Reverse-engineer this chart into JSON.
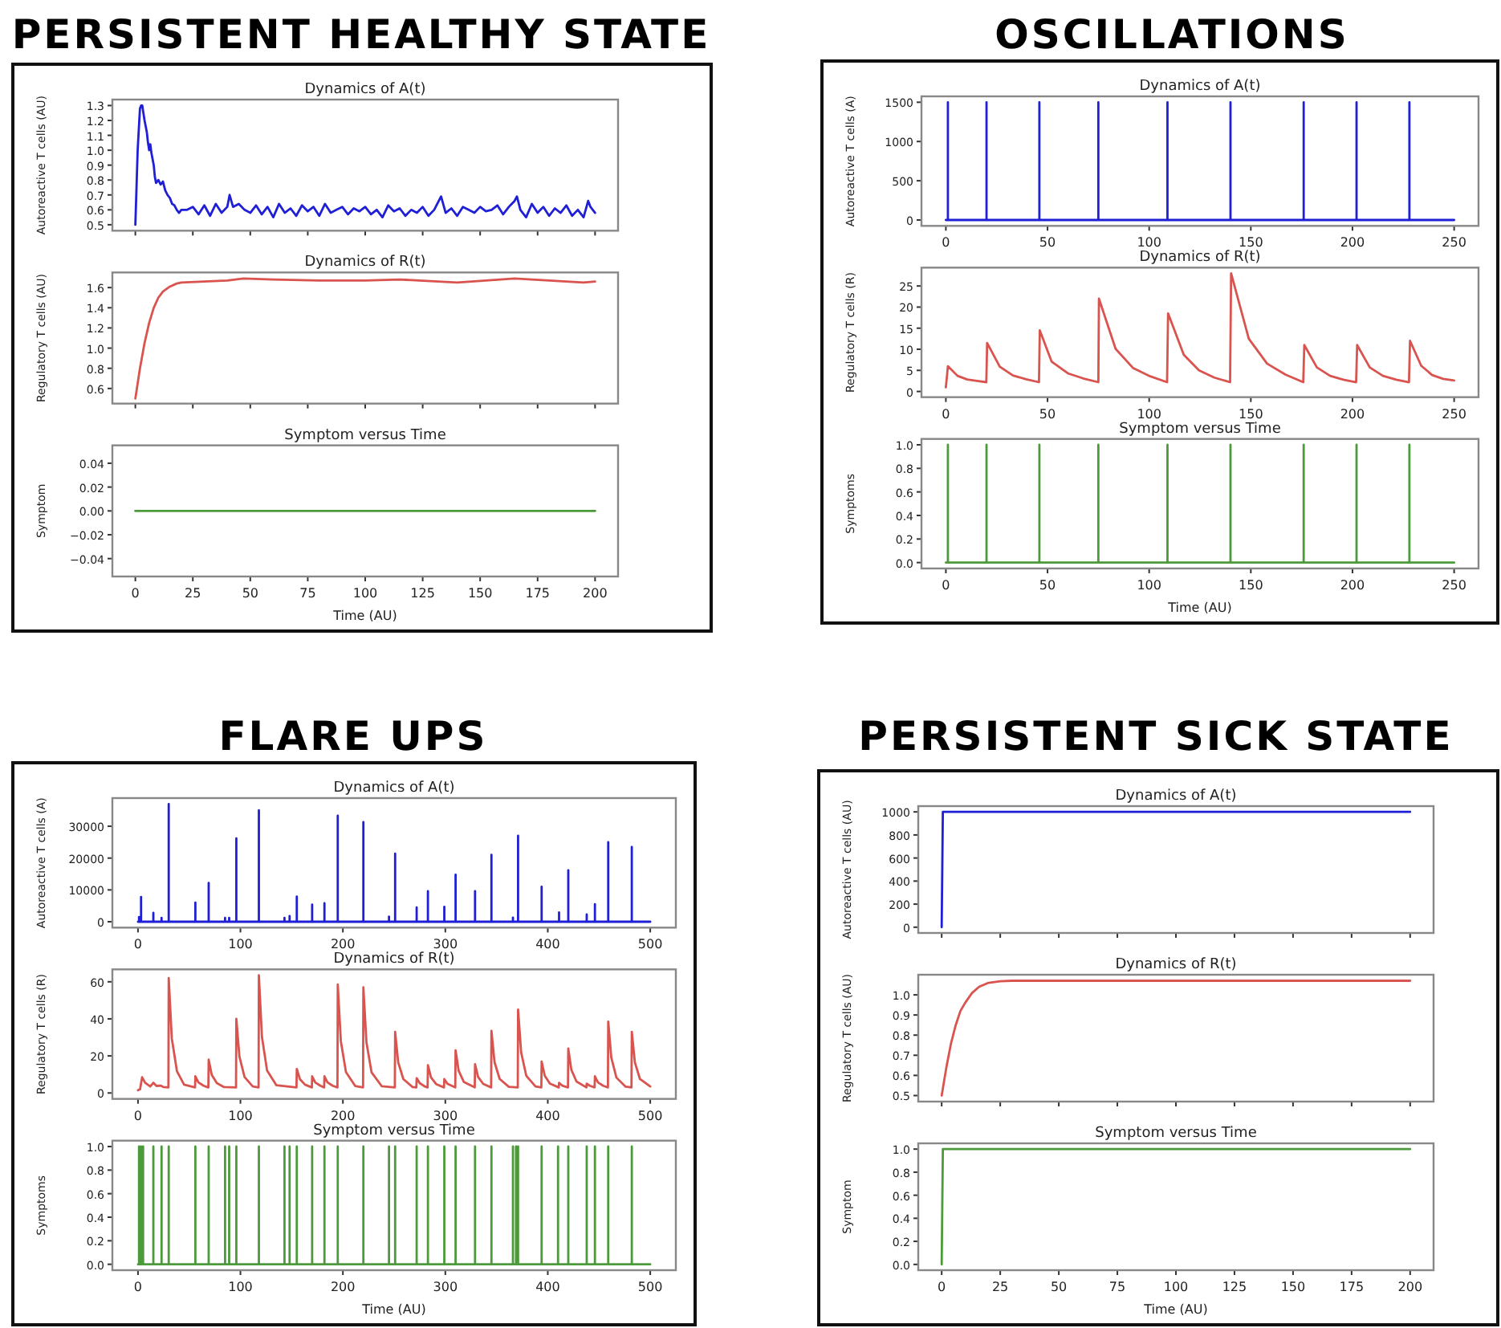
{
  "chart_data": [
    {
      "type": "line",
      "title": "PERSISTENT HEALTHY STATE",
      "subtitle": "Dynamics of A(t)",
      "ylabel": "Autoreactive T cells (AU)",
      "color": "#1f1fd6",
      "xlim": [
        -10,
        210
      ],
      "xticks": [
        0,
        25,
        50,
        75,
        100,
        125,
        150,
        175,
        200
      ],
      "ylim": [
        0.46,
        1.34
      ],
      "yticks": [
        0.5,
        0.6,
        0.7,
        0.8,
        0.9,
        {
          "value": 1,
          "label": "1.0"
        },
        1.1,
        1.2,
        1.3
      ],
      "tick_labels": "y",
      "x": [
        0,
        1,
        2,
        2.5,
        3,
        3.5,
        4,
        5,
        5.5,
        6,
        6.5,
        7,
        8,
        8.5,
        9,
        10,
        11,
        12,
        13,
        14,
        15,
        16,
        17,
        18,
        19,
        20,
        22.5,
        25,
        27.5,
        30,
        32.5,
        35,
        37.5,
        40,
        41,
        42.5,
        45,
        47.5,
        50,
        52.5,
        55,
        57.5,
        60,
        62.5,
        65,
        67.5,
        70,
        72.5,
        75,
        77.5,
        80,
        82.5,
        85,
        87.5,
        90,
        92.5,
        95,
        97.5,
        100,
        102.5,
        105,
        107.5,
        110,
        112.5,
        115,
        117.5,
        120,
        122.5,
        125,
        127.5,
        130,
        133,
        135,
        137.5,
        140,
        142.5,
        145,
        147.5,
        150,
        152.5,
        155,
        157.5,
        160,
        162.5,
        165,
        166,
        167.5,
        170,
        172.5,
        175,
        177.5,
        180,
        182.5,
        185,
        187.5,
        190,
        192.5,
        195,
        197,
        198,
        200
      ],
      "values": [
        0.5,
        1.0,
        1.28,
        1.3,
        1.3,
        1.25,
        1.2,
        1.12,
        1.05,
        1.0,
        1.04,
        0.98,
        0.9,
        0.82,
        0.78,
        0.8,
        0.77,
        0.79,
        0.73,
        0.7,
        0.68,
        0.64,
        0.63,
        0.6,
        0.58,
        0.6,
        0.6,
        0.62,
        0.57,
        0.63,
        0.56,
        0.64,
        0.58,
        0.62,
        0.7,
        0.62,
        0.64,
        0.6,
        0.58,
        0.63,
        0.57,
        0.62,
        0.55,
        0.64,
        0.58,
        0.61,
        0.56,
        0.63,
        0.59,
        0.62,
        0.56,
        0.64,
        0.58,
        0.6,
        0.62,
        0.57,
        0.61,
        0.59,
        0.62,
        0.57,
        0.6,
        0.55,
        0.63,
        0.59,
        0.61,
        0.56,
        0.6,
        0.58,
        0.62,
        0.56,
        0.6,
        0.69,
        0.58,
        0.61,
        0.56,
        0.62,
        0.6,
        0.58,
        0.62,
        0.59,
        0.6,
        0.63,
        0.57,
        0.62,
        0.66,
        0.69,
        0.6,
        0.55,
        0.64,
        0.58,
        0.62,
        0.56,
        0.61,
        0.58,
        0.63,
        0.56,
        0.6,
        0.55,
        0.66,
        0.62,
        0.58
      ]
    },
    {
      "type": "line",
      "title": "Dynamics of R(t)",
      "ylabel": "Regulatory T cells (AU)",
      "color": "#d9534f",
      "xlim": [
        -10,
        210
      ],
      "xticks": [
        0,
        25,
        50,
        75,
        100,
        125,
        150,
        175,
        200
      ],
      "ylim": [
        0.45,
        1.75
      ],
      "yticks": [
        0.6,
        0.8,
        {
          "value": 1,
          "label": "1.0"
        },
        1.2,
        1.4,
        1.6
      ],
      "tick_labels": "y",
      "x": [
        0,
        2,
        4,
        6,
        8,
        10,
        12,
        15,
        18,
        20,
        30,
        40,
        47,
        60,
        80,
        100,
        115,
        140,
        165,
        180,
        195,
        200
      ],
      "values": [
        0.5,
        0.8,
        1.05,
        1.25,
        1.4,
        1.5,
        1.56,
        1.61,
        1.64,
        1.65,
        1.66,
        1.67,
        1.69,
        1.68,
        1.67,
        1.67,
        1.68,
        1.65,
        1.69,
        1.67,
        1.65,
        1.66
      ]
    },
    {
      "type": "line",
      "title": "Symptom versus Time",
      "ylabel": "Symptom",
      "xlabel": "Time (AU)",
      "color": "#4c9a3c",
      "xlim": [
        -10,
        210
      ],
      "xticks": [
        0,
        25,
        50,
        75,
        100,
        125,
        150,
        175,
        200
      ],
      "ylim": [
        -0.055,
        0.055
      ],
      "yticks": [
        {
          "value": -0.04,
          "label": "−0.04"
        },
        {
          "value": -0.02,
          "label": "−0.02"
        },
        {
          "value": 0,
          "label": "0.00"
        },
        0.02,
        0.04
      ],
      "x": [
        0,
        200
      ],
      "values": [
        0,
        0
      ]
    },
    {
      "type": "line",
      "title": "OSCILLATIONS",
      "subtitle": "Dynamics of A(t)",
      "ylabel": "Autoreactive T cells (A)",
      "color": "#1f1fd6",
      "xlim": [
        -12,
        262
      ],
      "xticks": [
        0,
        50,
        100,
        150,
        200,
        250
      ],
      "ylim": [
        -75,
        1575
      ],
      "yticks": [
        0,
        500,
        1000,
        1500
      ],
      "x": [
        0,
        1,
        1,
        1,
        20,
        20,
        20,
        46,
        46,
        46,
        75,
        75,
        75,
        109,
        109,
        109,
        140,
        140,
        140,
        176,
        176,
        176,
        202,
        202,
        202,
        228,
        228,
        228,
        250
      ],
      "values": [
        0,
        0,
        1500,
        0,
        0,
        1500,
        0,
        0,
        1500,
        0,
        0,
        1500,
        0,
        0,
        1500,
        0,
        0,
        1500,
        0,
        0,
        1500,
        0,
        0,
        1500,
        0,
        0,
        1500,
        0,
        0
      ]
    },
    {
      "type": "line",
      "title": "Dynamics of R(t)",
      "ylabel": "Regulatory T cells (R)",
      "color": "#d9534f",
      "xlim": [
        -12,
        262
      ],
      "xticks": [
        0,
        50,
        100,
        150,
        200,
        250
      ],
      "ylim": [
        -1.35,
        29.35
      ],
      "yticks": [
        0,
        5,
        10,
        15,
        20,
        25
      ],
      "x": [
        0,
        1,
        5.75,
        10.5,
        15.25,
        19.9,
        20.3,
        26.5,
        33,
        39.5,
        45.8,
        46.2,
        52,
        60,
        67.5,
        75,
        75.3,
        83.5,
        92,
        100.5,
        108.8,
        109.3,
        117,
        124.5,
        132,
        139.8,
        140.3,
        149,
        158,
        167,
        175.8,
        176.3,
        182.5,
        189,
        195.5,
        201.8,
        202.3,
        208.5,
        215,
        221.5,
        227.8,
        228.3,
        233.8,
        239.2,
        244.6,
        250
      ],
      "values": [
        1,
        6,
        3.7,
        2.85,
        2.5,
        2.2,
        11.5,
        5.9,
        3.8,
        2.9,
        2.2,
        14.5,
        7.1,
        4.3,
        3.1,
        2.2,
        22,
        10.1,
        5.6,
        3.6,
        2.2,
        18.5,
        8.7,
        5.0,
        3.3,
        2.2,
        28,
        12.5,
        6.6,
        4.0,
        2.2,
        11,
        5.7,
        3.7,
        2.8,
        2.2,
        11,
        5.7,
        3.7,
        2.8,
        2.2,
        12,
        6.1,
        3.9,
        3.0,
        2.6
      ]
    },
    {
      "type": "line",
      "title": "Symptom versus Time",
      "ylabel": "Symptoms",
      "xlabel": "Time (AU)",
      "color": "#4c9a3c",
      "xlim": [
        -12,
        262
      ],
      "xticks": [
        0,
        50,
        100,
        150,
        200,
        250
      ],
      "ylim": [
        -0.05,
        1.05
      ],
      "yticks": [
        {
          "value": 0,
          "label": "0.0"
        },
        0.2,
        0.4,
        0.6,
        0.8,
        {
          "value": 1,
          "label": "1.0"
        }
      ],
      "x": [
        0,
        1,
        1,
        1,
        20,
        20,
        20,
        46,
        46,
        46,
        75,
        75,
        75,
        109,
        109,
        109,
        140,
        140,
        140,
        176,
        176,
        176,
        202,
        202,
        202,
        228,
        228,
        228,
        250
      ],
      "values": [
        0,
        0,
        1,
        0,
        0,
        1,
        0,
        0,
        1,
        0,
        0,
        1,
        0,
        0,
        1,
        0,
        0,
        1,
        0,
        0,
        1,
        0,
        0,
        1,
        0,
        0,
        1,
        0,
        0
      ]
    },
    {
      "type": "line",
      "title": "FLARE UPS",
      "subtitle": "Dynamics of A(t)",
      "ylabel": "Autoreactive T cells (A)",
      "color": "#1f1fd6",
      "xlim": [
        -25,
        525
      ],
      "xticks": [
        0,
        100,
        200,
        300,
        400,
        500
      ],
      "ylim": [
        -1850,
        38850
      ],
      "yticks": [
        0,
        10000,
        20000,
        30000
      ],
      "x": [
        0,
        1,
        1,
        1,
        3,
        3,
        3,
        15,
        15,
        15,
        23,
        23,
        23,
        30,
        30,
        30,
        56,
        56,
        56,
        69,
        69,
        69,
        85,
        85,
        85,
        89,
        89,
        89,
        96,
        96,
        96,
        118,
        118,
        118,
        143,
        143,
        143,
        148,
        148,
        148,
        155,
        155,
        155,
        170,
        170,
        170,
        182,
        182,
        182,
        195,
        195,
        195,
        220,
        220,
        220,
        245,
        245,
        245,
        251,
        251,
        251,
        272,
        272,
        272,
        283,
        283,
        283,
        299,
        299,
        299,
        310,
        310,
        310,
        329,
        329,
        329,
        345,
        345,
        345,
        366,
        366,
        366,
        371,
        371,
        371,
        394,
        394,
        394,
        411,
        411,
        411,
        420,
        420,
        420,
        438,
        438,
        438,
        446,
        446,
        446,
        459,
        459,
        459,
        482,
        482,
        482,
        500
      ],
      "values": [
        0,
        0,
        1500,
        0,
        0,
        7800,
        0,
        0,
        2800,
        0,
        0,
        1200,
        0,
        0,
        37000,
        0,
        0,
        6000,
        0,
        0,
        12200,
        0,
        0,
        1200,
        0,
        0,
        1200,
        0,
        0,
        26200,
        0,
        0,
        35000,
        0,
        0,
        1200,
        0,
        0,
        1800,
        0,
        0,
        7900,
        0,
        0,
        5400,
        0,
        0,
        5800,
        0,
        0,
        33300,
        0,
        0,
        31300,
        0,
        0,
        1600,
        0,
        0,
        21400,
        0,
        0,
        4500,
        0,
        0,
        9600,
        0,
        0,
        4700,
        0,
        0,
        14800,
        0,
        0,
        9600,
        0,
        0,
        21000,
        0,
        0,
        1300,
        0,
        0,
        27000,
        0,
        0,
        11000,
        0,
        0,
        2900,
        0,
        0,
        16200,
        0,
        0,
        2300,
        0,
        0,
        5500,
        0,
        0,
        25000,
        0,
        0,
        23500,
        0,
        0
      ]
    },
    {
      "type": "line",
      "title": "Dynamics of R(t)",
      "ylabel": "Regulatory T cells (R)",
      "color": "#d9534f",
      "xlim": [
        -25,
        525
      ],
      "xticks": [
        0,
        100,
        200,
        300,
        400,
        500
      ],
      "ylim": [
        -3.2,
        66.7
      ],
      "yticks": [
        0,
        20,
        40,
        60
      ],
      "x": [
        0,
        2,
        4,
        7,
        12,
        15,
        18,
        22,
        25,
        29.7,
        30,
        33,
        38,
        45,
        55.7,
        56,
        59,
        64,
        68.7,
        69,
        72,
        77,
        84,
        95.7,
        96,
        99,
        104,
        112,
        117.7,
        118,
        121,
        126,
        135,
        154.7,
        155,
        158,
        163,
        169.7,
        170,
        173,
        178,
        181.7,
        182,
        185,
        190,
        194.7,
        195,
        198,
        203,
        212,
        219.7,
        220,
        223,
        228,
        238,
        250.7,
        251,
        254,
        259,
        268,
        271.7,
        272,
        275,
        280,
        282.7,
        283,
        286,
        291,
        298.7,
        299,
        302,
        307,
        309.7,
        310,
        313,
        318,
        328.7,
        329,
        332,
        337,
        344.7,
        345,
        348,
        353,
        362,
        370.7,
        371,
        374,
        379,
        388,
        393.7,
        394,
        397,
        402,
        410.7,
        411,
        414,
        419.7,
        420,
        423,
        428,
        437.7,
        438,
        441,
        445.7,
        446,
        449,
        454,
        458.7,
        459,
        462,
        467,
        476,
        481.7,
        482,
        485,
        490,
        500
      ],
      "values": [
        1.5,
        2,
        8.5,
        5.5,
        3.5,
        5.5,
        3.8,
        4,
        3.2,
        3,
        62,
        29.5,
        11.8,
        4.5,
        3,
        9,
        5.7,
        3.9,
        3,
        18,
        9.8,
        5.3,
        3.2,
        3,
        40,
        19.7,
        8.6,
        3.5,
        3,
        63.5,
        30.2,
        12.1,
        4.2,
        3,
        13,
        7.5,
        4.5,
        3,
        9,
        5.7,
        3.9,
        3,
        9,
        5.7,
        3.9,
        3,
        58.5,
        28,
        11.3,
        3.8,
        3,
        57,
        27.3,
        11.1,
        3.6,
        3,
        33,
        16.5,
        7.5,
        3.2,
        3,
        8,
        5.3,
        3.5,
        3,
        15,
        8.4,
        4.8,
        3,
        7.5,
        5,
        3.7,
        3,
        23,
        12,
        6,
        3,
        15.5,
        8.6,
        4.9,
        3,
        33.5,
        16.7,
        7.6,
        3.3,
        3,
        45,
        21.9,
        9.3,
        3.5,
        3,
        17,
        9.3,
        5.1,
        3,
        5.5,
        4,
        3,
        24,
        12.5,
        6.2,
        3,
        5,
        3.9,
        3,
        9,
        5.7,
        3.9,
        3,
        38.5,
        19,
        8.3,
        3.4,
        3,
        33,
        16.5,
        7.5,
        3.5
      ]
    },
    {
      "type": "line",
      "title": "Symptom versus Time",
      "ylabel": "Symptoms",
      "xlabel": "Time (AU)",
      "color": "#4c9a3c",
      "xlim": [
        -25,
        525
      ],
      "xticks": [
        0,
        100,
        200,
        300,
        400,
        500
      ],
      "ylim": [
        -0.05,
        1.05
      ],
      "yticks": [
        {
          "value": 0,
          "label": "0.0"
        },
        0.2,
        0.4,
        0.6,
        0.8,
        {
          "value": 1,
          "label": "1.0"
        }
      ],
      "x": [
        0,
        1,
        1,
        1,
        3,
        3,
        3,
        5,
        5,
        5,
        15,
        15,
        15,
        23,
        23,
        23,
        30,
        30,
        30,
        56,
        56,
        56,
        69,
        69,
        69,
        85,
        85,
        85,
        89,
        89,
        89,
        96,
        96,
        96,
        118,
        118,
        118,
        143,
        143,
        143,
        148,
        148,
        148,
        155,
        155,
        155,
        170,
        170,
        170,
        182,
        182,
        182,
        195,
        195,
        195,
        220,
        220,
        220,
        245,
        245,
        245,
        251,
        251,
        251,
        272,
        272,
        272,
        283,
        283,
        283,
        299,
        299,
        299,
        310,
        310,
        310,
        329,
        329,
        329,
        345,
        345,
        345,
        366,
        366,
        366,
        369,
        369,
        369,
        371,
        371,
        371,
        394,
        394,
        394,
        410,
        410,
        410,
        420,
        420,
        420,
        438,
        438,
        438,
        446,
        446,
        446,
        459,
        459,
        459,
        482,
        482,
        482,
        500
      ],
      "values": [
        0,
        0,
        1,
        0,
        0,
        1,
        0,
        0,
        1,
        0,
        0,
        1,
        0,
        0,
        1,
        0,
        0,
        1,
        0,
        0,
        1,
        0,
        0,
        1,
        0,
        0,
        1,
        0,
        0,
        1,
        0,
        0,
        1,
        0,
        0,
        1,
        0,
        0,
        1,
        0,
        0,
        1,
        0,
        0,
        1,
        0,
        0,
        1,
        0,
        0,
        1,
        0,
        0,
        1,
        0,
        0,
        1,
        0,
        0,
        1,
        0,
        0,
        1,
        0,
        0,
        1,
        0,
        0,
        1,
        0,
        0,
        1,
        0,
        0,
        1,
        0,
        0,
        1,
        0,
        0,
        1,
        0,
        0,
        1,
        0,
        0,
        1,
        0,
        0,
        1,
        0,
        0,
        1,
        0,
        0,
        1,
        0,
        0,
        1,
        0,
        0,
        1,
        0,
        0,
        1,
        0,
        0,
        1,
        0,
        0,
        1,
        0,
        0
      ]
    },
    {
      "type": "line",
      "title": "PERSISTENT SICK STATE",
      "subtitle": "Dynamics of A(t)",
      "ylabel": "Autoreactive T cells (AU)",
      "color": "#1f1fd6",
      "xlim": [
        -10,
        210
      ],
      "xticks": [
        0,
        25,
        50,
        75,
        100,
        125,
        150,
        175,
        200
      ],
      "ylim": [
        -50,
        1050
      ],
      "yticks": [
        0,
        200,
        400,
        600,
        800,
        1000
      ],
      "tick_labels": "y",
      "x": [
        0,
        0.5,
        200
      ],
      "values": [
        0,
        1000,
        1000
      ]
    },
    {
      "type": "line",
      "title": "Dynamics of R(t)",
      "ylabel": "Regulatory T cells (AU)",
      "color": "#d9534f",
      "xlim": [
        -10,
        210
      ],
      "xticks": [
        0,
        25,
        50,
        75,
        100,
        125,
        150,
        175,
        200
      ],
      "ylim": [
        0.47,
        1.1
      ],
      "yticks": [
        0.5,
        0.6,
        0.7,
        0.8,
        0.9,
        {
          "value": 1,
          "label": "1.0"
        }
      ],
      "tick_labels": "y",
      "x": [
        0,
        2,
        4,
        6,
        8,
        10,
        13,
        16,
        20,
        25,
        30,
        200
      ],
      "values": [
        0.5,
        0.64,
        0.76,
        0.85,
        0.92,
        0.96,
        1.01,
        1.04,
        1.06,
        1.068,
        1.07,
        1.07
      ]
    },
    {
      "type": "line",
      "title": "Symptom versus Time",
      "ylabel": "Symptom",
      "xlabel": "Time (AU)",
      "color": "#4c9a3c",
      "xlim": [
        -10,
        210
      ],
      "xticks": [
        0,
        25,
        50,
        75,
        100,
        125,
        150,
        175,
        200
      ],
      "ylim": [
        -0.05,
        1.05
      ],
      "yticks": [
        {
          "value": 0,
          "label": "0.0"
        },
        0.2,
        0.4,
        0.6,
        0.8,
        {
          "value": 1,
          "label": "1.0"
        }
      ],
      "x": [
        0,
        0.5,
        200
      ],
      "values": [
        0,
        1,
        1
      ]
    }
  ]
}
